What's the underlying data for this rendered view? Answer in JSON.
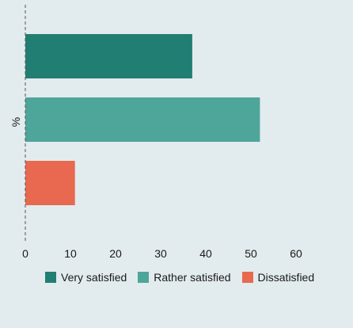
{
  "chart_data": {
    "type": "bar",
    "orientation": "horizontal",
    "categories": [
      "Very satisfied",
      "Rather satisfied",
      "Dissatisfied"
    ],
    "values": [
      37,
      52,
      11
    ],
    "colors": [
      "#217e73",
      "#4ea59a",
      "#e8694f"
    ],
    "ylabel": "%",
    "xlim": [
      0,
      60
    ],
    "xticks": [
      "0",
      "10",
      "20",
      "30",
      "40",
      "50",
      "60"
    ],
    "grid": false,
    "legend_position": "bottom"
  },
  "legend": {
    "items": [
      {
        "label": "Very satisfied",
        "color": "#217e73"
      },
      {
        "label": "Rather satisfied",
        "color": "#4ea59a"
      },
      {
        "label": "Dissatisfied",
        "color": "#e8694f"
      }
    ]
  }
}
